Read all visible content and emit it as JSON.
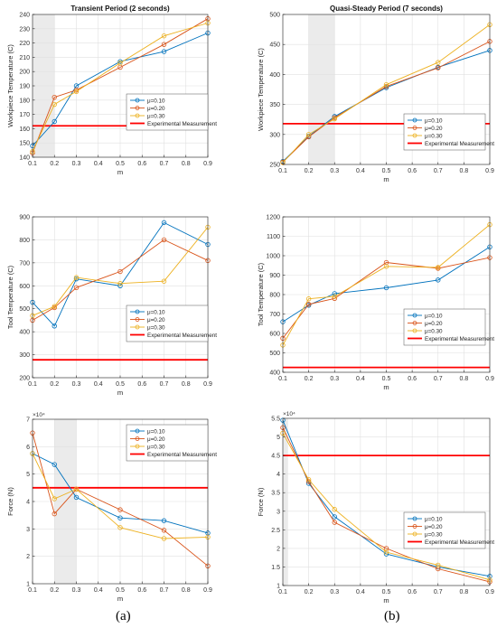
{
  "figure": {
    "labels": [
      "(a)",
      "(b)"
    ]
  },
  "style": {
    "series_colors": [
      "#0072BD",
      "#D95319",
      "#EDB120"
    ],
    "reference_color": "#FF0000",
    "shade_color": "#EBEBEB",
    "grid_color": "#E0E0E0"
  },
  "chart_data": [
    {
      "type": "line",
      "title": "Transient Period (2 seconds)",
      "xlabel": "m",
      "ylabel": "Workpiece Temperature (C)",
      "xlim": [
        0.1,
        0.9
      ],
      "ylim": [
        140,
        240
      ],
      "xticks": [
        0.1,
        0.2,
        0.3,
        0.4,
        0.5,
        0.6,
        0.7,
        0.8,
        0.9
      ],
      "yticks": [
        140,
        150,
        160,
        170,
        180,
        190,
        200,
        210,
        220,
        230,
        240
      ],
      "shaded_x": [
        0.1,
        0.2
      ],
      "x": [
        0.1,
        0.2,
        0.3,
        0.5,
        0.7,
        0.9
      ],
      "series": [
        {
          "name": "μ=0.10",
          "values": [
            148,
            165,
            190,
            207,
            214,
            227
          ]
        },
        {
          "name": "μ=0.20",
          "values": [
            143,
            182,
            187,
            203,
            219,
            237
          ]
        },
        {
          "name": "μ=0.30",
          "values": [
            144,
            177,
            186,
            206,
            225,
            234
          ]
        }
      ],
      "reference": {
        "name": "Experimental Measurement",
        "value": 162
      },
      "legend": "center-right",
      "grid": true
    },
    {
      "type": "line",
      "title": "Quasi-Steady Period (7 seconds)",
      "xlabel": "m",
      "ylabel": "Workpiece Temperature (C)",
      "xlim": [
        0.1,
        0.9
      ],
      "ylim": [
        250,
        500
      ],
      "xticks": [
        0.1,
        0.2,
        0.3,
        0.4,
        0.5,
        0.6,
        0.7,
        0.8,
        0.9
      ],
      "yticks": [
        250,
        300,
        350,
        400,
        450,
        500
      ],
      "shaded_x": [
        0.2,
        0.3
      ],
      "x": [
        0.1,
        0.2,
        0.3,
        0.5,
        0.7,
        0.9
      ],
      "series": [
        {
          "name": "μ=0.10",
          "values": [
            255,
            297,
            330,
            378,
            412,
            440
          ]
        },
        {
          "name": "μ=0.20",
          "values": [
            254,
            296,
            328,
            380,
            411,
            455
          ]
        },
        {
          "name": "μ=0.30",
          "values": [
            253,
            300,
            326,
            383,
            420,
            483
          ]
        }
      ],
      "reference": {
        "name": "Experimental Measurement",
        "value": 318
      },
      "legend": "bottom-right",
      "grid": true
    },
    {
      "type": "line",
      "title": "",
      "xlabel": "m",
      "ylabel": "Tool Temperature (C)",
      "xlim": [
        0.1,
        0.9
      ],
      "ylim": [
        200,
        900
      ],
      "xticks": [
        0.1,
        0.2,
        0.3,
        0.4,
        0.5,
        0.6,
        0.7,
        0.8,
        0.9
      ],
      "yticks": [
        200,
        300,
        400,
        500,
        600,
        700,
        800,
        900
      ],
      "x": [
        0.1,
        0.2,
        0.3,
        0.5,
        0.7,
        0.9
      ],
      "series": [
        {
          "name": "μ=0.10",
          "values": [
            528,
            425,
            630,
            600,
            875,
            780
          ]
        },
        {
          "name": "μ=0.20",
          "values": [
            450,
            505,
            592,
            662,
            800,
            710
          ]
        },
        {
          "name": "μ=0.30",
          "values": [
            470,
            510,
            636,
            610,
            620,
            855
          ]
        }
      ],
      "reference": {
        "name": "Experimental Measurement",
        "value": 278
      },
      "legend": "center-right",
      "grid": true
    },
    {
      "type": "line",
      "title": "",
      "xlabel": "m",
      "ylabel": "Tool Temperature (C)",
      "xlim": [
        0.1,
        0.9
      ],
      "ylim": [
        400,
        1200
      ],
      "xticks": [
        0.1,
        0.2,
        0.3,
        0.4,
        0.5,
        0.6,
        0.7,
        0.8,
        0.9
      ],
      "yticks": [
        400,
        500,
        600,
        700,
        800,
        900,
        1000,
        1100,
        1200
      ],
      "x": [
        0.1,
        0.2,
        0.3,
        0.5,
        0.7,
        0.9
      ],
      "series": [
        {
          "name": "μ=0.10",
          "values": [
            660,
            745,
            805,
            835,
            875,
            1045
          ]
        },
        {
          "name": "μ=0.20",
          "values": [
            575,
            750,
            780,
            965,
            935,
            990
          ]
        },
        {
          "name": "μ=0.30",
          "values": [
            540,
            778,
            790,
            945,
            940,
            1160
          ]
        }
      ],
      "reference": {
        "name": "Experimental Measurement",
        "value": 425
      },
      "legend": "bottom-right",
      "grid": true
    },
    {
      "type": "line",
      "title": "",
      "xlabel": "m",
      "ylabel": "Force (N)",
      "y_multiplier": "×10⁴",
      "xlim": [
        0.1,
        0.9
      ],
      "ylim": [
        1,
        7
      ],
      "xticks": [
        0.1,
        0.2,
        0.3,
        0.4,
        0.5,
        0.6,
        0.7,
        0.8,
        0.9
      ],
      "yticks": [
        1,
        2,
        3,
        4,
        5,
        6,
        7
      ],
      "shaded_x": [
        0.2,
        0.3
      ],
      "x": [
        0.1,
        0.2,
        0.3,
        0.5,
        0.7,
        0.9
      ],
      "series": [
        {
          "name": "μ=0.10",
          "values": [
            5.75,
            5.35,
            4.15,
            3.4,
            3.3,
            2.85
          ]
        },
        {
          "name": "μ=0.20",
          "values": [
            6.5,
            3.55,
            4.45,
            3.7,
            2.95,
            1.65
          ]
        },
        {
          "name": "μ=0.30",
          "values": [
            5.75,
            4.1,
            4.45,
            3.05,
            2.65,
            2.7
          ]
        }
      ],
      "reference": {
        "name": "Experimental Measurement",
        "value": 4.5
      },
      "legend": "top-right",
      "grid": true
    },
    {
      "type": "line",
      "title": "",
      "xlabel": "m",
      "ylabel": "Force (N)",
      "y_multiplier": "×10⁴",
      "xlim": [
        0.1,
        0.9
      ],
      "ylim": [
        1,
        5.5
      ],
      "xticks": [
        0.1,
        0.2,
        0.3,
        0.4,
        0.5,
        0.6,
        0.7,
        0.8,
        0.9
      ],
      "yticks": [
        1,
        1.5,
        2,
        2.5,
        3,
        3.5,
        4,
        4.5,
        5,
        5.5
      ],
      "shaded_x": [
        0.1,
        0.12
      ],
      "x": [
        0.1,
        0.2,
        0.3,
        0.5,
        0.7,
        0.9
      ],
      "series": [
        {
          "name": "μ=0.10",
          "values": [
            5.45,
            3.75,
            2.85,
            1.85,
            1.5,
            1.25
          ]
        },
        {
          "name": "μ=0.20",
          "values": [
            5.25,
            3.8,
            2.7,
            2.0,
            1.45,
            1.1
          ]
        },
        {
          "name": "μ=0.30",
          "values": [
            5.1,
            3.85,
            3.05,
            1.9,
            1.55,
            1.15
          ]
        }
      ],
      "reference": {
        "name": "Experimental Measurement",
        "value": 4.5
      },
      "legend": "center-right",
      "grid": true
    }
  ]
}
